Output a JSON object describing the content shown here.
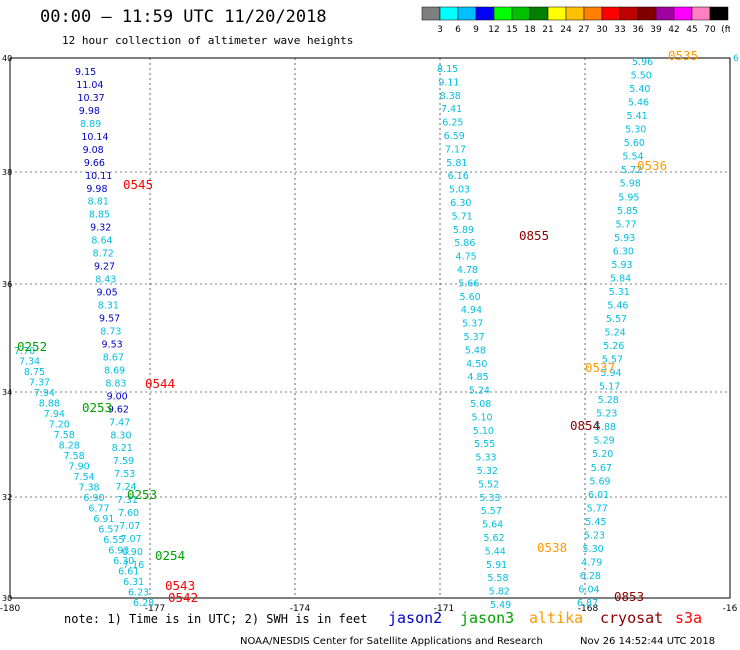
{
  "header": {
    "title": "00:00 — 11:59 UTC 11/20/2018",
    "subtitle": "12 hour collection of altimeter wave heights"
  },
  "color_scale": {
    "labels": [
      "3",
      "6",
      "9",
      "12",
      "15",
      "18",
      "21",
      "24",
      "27",
      "30",
      "33",
      "36",
      "39",
      "42",
      "45",
      "70",
      "(ft)"
    ],
    "colors": [
      "#7f7f7f",
      "#00ffff",
      "#00bfff",
      "#0000ff",
      "#00ff00",
      "#00c000",
      "#008000",
      "#ffff00",
      "#ffc000",
      "#ff8000",
      "#ff0000",
      "#c00000",
      "#800000",
      "#a000a0",
      "#ff00ff",
      "#ff80c0",
      "#000000"
    ]
  },
  "map": {
    "lon_range": [
      -180,
      -165
    ],
    "lat_range": [
      30,
      40
    ],
    "x_tick_labels": [
      "-180",
      "-177",
      "-174",
      "-171",
      "-168",
      "-16"
    ],
    "y_tick_labels": [
      "40",
      "38",
      "36",
      "34",
      "32",
      "30"
    ],
    "right_edge_label": "6"
  },
  "satellite_colors": {
    "jason2": "#0000c8",
    "jason3": "#00a000",
    "altika": "#ff9900",
    "cryosat": "#8b0000",
    "s3a": "#ff0000",
    "swh_light": "#00bfe0"
  },
  "tracks": [
    {
      "id": "t1",
      "sat": "jason2",
      "values": [
        "9.15",
        "11.04",
        "10.37",
        "9.98",
        "8.89",
        "10.14",
        "9.08",
        "9.66",
        "10.11",
        "9.98",
        "8.81",
        "8.85",
        "9.32",
        "8.64",
        "8.72",
        "9.27",
        "8.43",
        "9.05",
        "8.31",
        "9.57",
        "8.73",
        "9.53",
        "8.67",
        "8.69",
        "8.83",
        "9.00",
        "9.62",
        "7.47",
        "8.30",
        "8.21",
        "7.59",
        "7.53",
        "7.24",
        "7.31",
        "7.60",
        "7.07",
        "7.07",
        "6.90",
        "7.16"
      ]
    },
    {
      "id": "t2",
      "sat": "jason3",
      "values": [
        "7.70",
        "7.34",
        "8.75",
        "7.37",
        "7.94",
        "8.88",
        "7.94",
        "7.20",
        "7.58",
        "8.28",
        "7.58",
        "7.90",
        "7.54",
        "7.38",
        "6.90",
        "6.77",
        "6.91",
        "6.57",
        "6.55",
        "6.93",
        "6.30",
        "6.61",
        "6.31",
        "6.23",
        "6.28"
      ]
    },
    {
      "id": "t3",
      "sat": "cryosat",
      "values": [
        "8.15",
        "9.11",
        "8.38",
        "7.41",
        "6.25",
        "6.59",
        "7.17",
        "5.81",
        "6.16",
        "5.03",
        "6.30",
        "5.71",
        "5.89",
        "5.86",
        "4.75",
        "4.78",
        "5.66",
        "5.60",
        "4.94",
        "5.37",
        "5.37",
        "5.48",
        "4.50",
        "4.85",
        "5.24",
        "5.08",
        "5.10",
        "5.10",
        "5.55",
        "5.33",
        "5.32",
        "5.52",
        "5.33",
        "5.57",
        "5.64",
        "5.62",
        "5.44",
        "5.91",
        "5.58",
        "5.82",
        "5.49"
      ]
    },
    {
      "id": "t4",
      "sat": "altika",
      "values": [
        "5.96",
        "5.50",
        "5.40",
        "5.46",
        "5.41",
        "5.30",
        "5.60",
        "5.54",
        "5.72",
        "5.98",
        "5.95",
        "5.85",
        "5.77",
        "5.93",
        "6.30",
        "5.93",
        "5.84",
        "5.31",
        "5.46",
        "5.57",
        "5.24",
        "5.26",
        "5.57",
        "5.94",
        "5.17",
        "5.28",
        "5.23",
        "5.88",
        "5.29",
        "5.20",
        "5.67",
        "5.69",
        "6.01",
        "5.77",
        "5.45",
        "5.23",
        "5.30",
        "4.79",
        "6.28",
        "6.04",
        "6.87"
      ]
    }
  ],
  "time_labels": [
    {
      "text": "0545",
      "sat": "s3a"
    },
    {
      "text": "0544",
      "sat": "s3a"
    },
    {
      "text": "0543",
      "sat": "s3a"
    },
    {
      "text": "0542",
      "sat": "s3a"
    },
    {
      "text": "0252",
      "sat": "jason3"
    },
    {
      "text": "0253",
      "sat": "jason3"
    },
    {
      "text": "0253",
      "sat": "jason3"
    },
    {
      "text": "0254",
      "sat": "jason3"
    },
    {
      "text": "0855",
      "sat": "cryosat"
    },
    {
      "text": "0854",
      "sat": "cryosat"
    },
    {
      "text": "0853",
      "sat": "cryosat"
    },
    {
      "text": "0535",
      "sat": "altika"
    },
    {
      "text": "0536",
      "sat": "altika"
    },
    {
      "text": "0537",
      "sat": "altika"
    },
    {
      "text": "0538",
      "sat": "altika"
    }
  ],
  "legend": {
    "note": "note: 1) Time is in UTC; 2) SWH is in feet",
    "items": [
      {
        "label": "jason2",
        "sat": "jason2"
      },
      {
        "label": "jason3",
        "sat": "jason3"
      },
      {
        "label": "altika",
        "sat": "altika"
      },
      {
        "label": "cryosat",
        "sat": "cryosat"
      },
      {
        "label": "s3a",
        "sat": "s3a"
      }
    ]
  },
  "footer": {
    "credit": "NOAA/NESDIS Center for Satellite Applications and Research",
    "timestamp": "Nov 26 14:52:44 UTC 2018"
  }
}
